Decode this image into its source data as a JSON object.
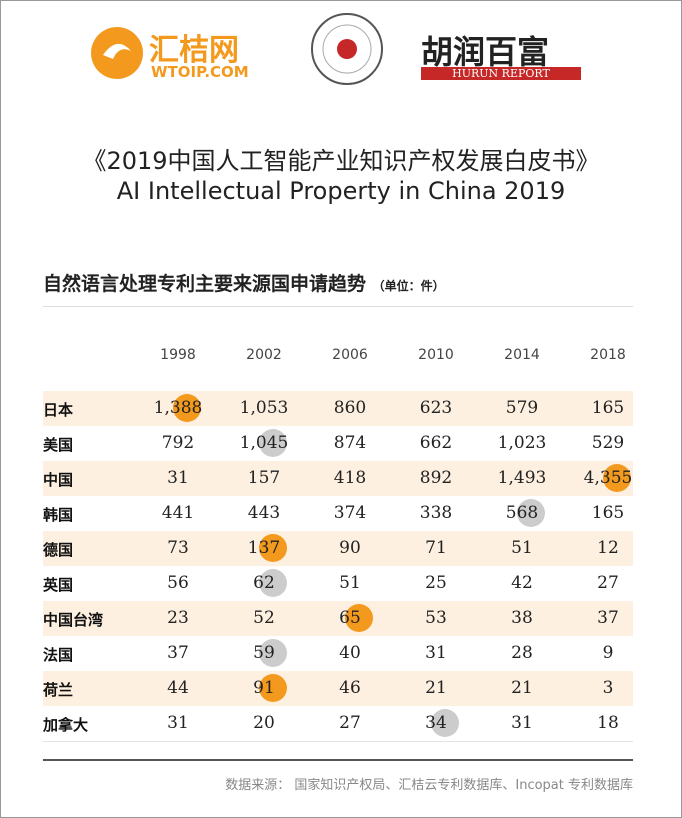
{
  "header": {
    "logo_left": "汇桔网",
    "logo_left_url": "WTOIP.COM",
    "logo_right": "胡润百富",
    "logo_right_sub": "HURUN REPORT",
    "title": "《2019中国人工智能产业知识产权发展白皮书》",
    "subtitle": "AI Intellectual Property in China 2019"
  },
  "table": {
    "title": "自然语言处理专利主要来源国申请趋势",
    "unit": "（单位：件）",
    "columns": [
      "1998",
      "2002",
      "2006",
      "2010",
      "2014",
      "2018"
    ],
    "rows": [
      {
        "label": "日本",
        "cells": [
          "1,388",
          "1,053",
          "860",
          "623",
          "579",
          "165"
        ],
        "shaded": true,
        "mark": {
          "col": 0,
          "color": "#f39a1e"
        }
      },
      {
        "label": "美国",
        "cells": [
          "792",
          "1,045",
          "874",
          "662",
          "1,023",
          "529"
        ],
        "shaded": false,
        "mark": {
          "col": 1,
          "color": "#cccccc"
        }
      },
      {
        "label": "中国",
        "cells": [
          "31",
          "157",
          "418",
          "892",
          "1,493",
          "4,355"
        ],
        "shaded": true,
        "mark": {
          "col": 5,
          "color": "#f39a1e"
        }
      },
      {
        "label": "韩国",
        "cells": [
          "441",
          "443",
          "374",
          "338",
          "568",
          "165"
        ],
        "shaded": false,
        "mark": {
          "col": 4,
          "color": "#cccccc"
        }
      },
      {
        "label": "德国",
        "cells": [
          "73",
          "137",
          "90",
          "71",
          "51",
          "12"
        ],
        "shaded": true,
        "mark": {
          "col": 1,
          "color": "#f39a1e"
        }
      },
      {
        "label": "英国",
        "cells": [
          "56",
          "62",
          "51",
          "25",
          "42",
          "27"
        ],
        "shaded": false,
        "mark": {
          "col": 1,
          "color": "#cccccc"
        }
      },
      {
        "label": "中国台湾",
        "cells": [
          "23",
          "52",
          "65",
          "53",
          "38",
          "37"
        ],
        "shaded": true,
        "mark": {
          "col": 2,
          "color": "#f39a1e"
        }
      },
      {
        "label": "法国",
        "cells": [
          "37",
          "59",
          "40",
          "31",
          "28",
          "9"
        ],
        "shaded": false,
        "mark": {
          "col": 1,
          "color": "#cccccc"
        }
      },
      {
        "label": "荷兰",
        "cells": [
          "44",
          "91",
          "46",
          "21",
          "21",
          "3"
        ],
        "shaded": true,
        "mark": {
          "col": 1,
          "color": "#f39a1e"
        }
      },
      {
        "label": "加拿大",
        "cells": [
          "31",
          "20",
          "27",
          "34",
          "31",
          "18"
        ],
        "shaded": false,
        "mark": {
          "col": 3,
          "color": "#cccccc"
        }
      }
    ]
  },
  "footer": {
    "source": "数据来源： 国家知识产权局、汇桔云专利数据库、Incopat 专利数据库"
  }
}
